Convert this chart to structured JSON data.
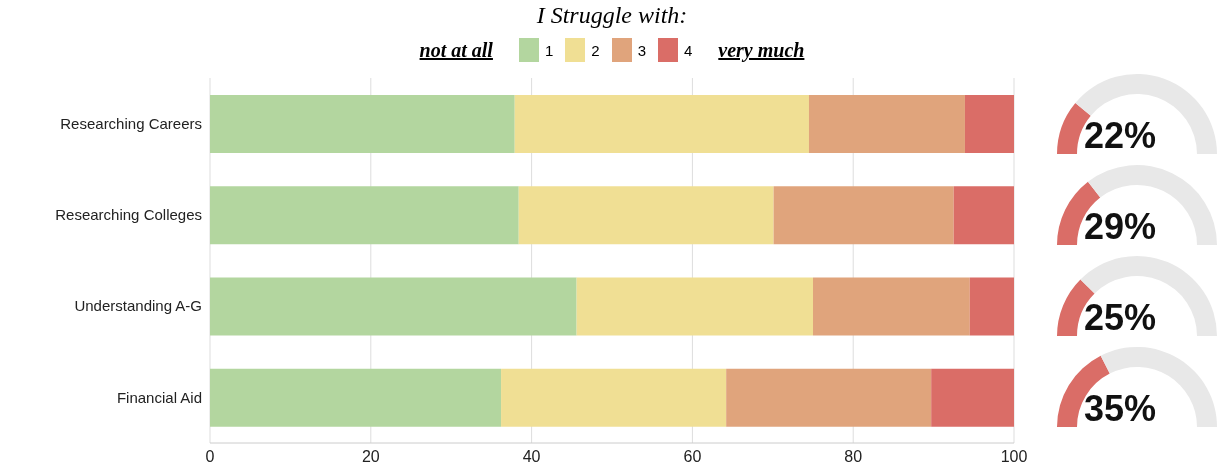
{
  "chart_data": [
    {
      "type": "bar",
      "orientation": "horizontal",
      "stacked": true,
      "title": "I Struggle with:",
      "annotations": [
        "not at all",
        "very much"
      ],
      "legend": "top",
      "grid": "x",
      "categories": [
        "Researching Careers",
        "Researching Colleges",
        "Understanding A-G",
        "Financial Aid"
      ],
      "series": [
        {
          "name": "1",
          "color": "#b3d69f",
          "values": [
            37.9,
            38.4,
            45.6,
            36.2
          ]
        },
        {
          "name": "2",
          "color": "#f0df94",
          "values": [
            36.6,
            31.7,
            29.4,
            28.0
          ]
        },
        {
          "name": "3",
          "color": "#e0a47c",
          "values": [
            19.4,
            22.4,
            19.5,
            25.5
          ]
        },
        {
          "name": "4",
          "color": "#da6d67",
          "values": [
            6.1,
            7.5,
            5.5,
            10.3
          ]
        }
      ],
      "xlim": [
        0,
        100
      ],
      "xticks": [
        0,
        20,
        40,
        60,
        80,
        100
      ]
    },
    {
      "type": "donut",
      "categories": [
        null,
        null
      ],
      "values": [
        22,
        78
      ],
      "colors": [
        "#da6d67",
        "#e8e8e8"
      ],
      "value_labels": [
        "22%",
        null
      ]
    },
    {
      "type": "donut",
      "categories": [
        null,
        null
      ],
      "values": [
        29,
        71
      ],
      "colors": [
        "#da6d67",
        "#e8e8e8"
      ],
      "value_labels": [
        "29%",
        null
      ]
    },
    {
      "type": "donut",
      "categories": [
        null,
        null
      ],
      "values": [
        25,
        75
      ],
      "colors": [
        "#da6d67",
        "#e8e8e8"
      ],
      "value_labels": [
        "25%",
        null
      ]
    },
    {
      "type": "donut",
      "categories": [
        null,
        null
      ],
      "values": [
        35,
        65
      ],
      "colors": [
        "#da6d67",
        "#e8e8e8"
      ],
      "value_labels": [
        "35%",
        null
      ]
    }
  ]
}
